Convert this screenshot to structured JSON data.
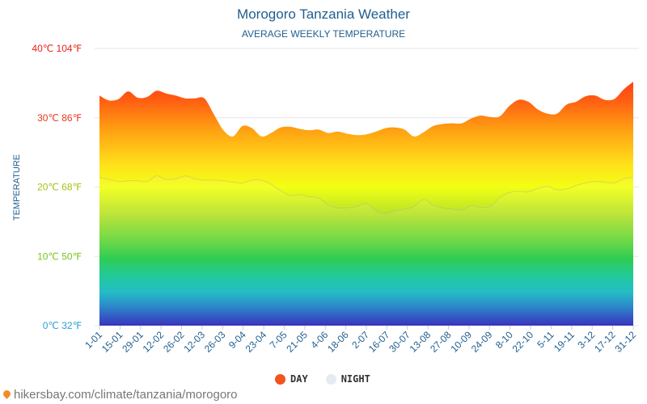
{
  "header": {
    "title": "Morogoro Tanzania Weather",
    "subtitle": "AVERAGE WEEKLY TEMPERATURE"
  },
  "legend": {
    "day_label": "DAY",
    "night_label": "NIGHT",
    "day_color": "#f2541d",
    "night_color": "#e6ebf2"
  },
  "footer": {
    "source": "hikersbay.com/climate/tanzania/morogoro"
  },
  "chart_data": {
    "type": "area",
    "ylabel": "TEMPERATURE",
    "ylim": [
      0,
      40
    ],
    "y_ticks": [
      {
        "value": 0,
        "label": "0℃ 32℉",
        "color": "#2a9fd6"
      },
      {
        "value": 10,
        "label": "10℃ 50℉",
        "color": "#7ac41e"
      },
      {
        "value": 20,
        "label": "20℃ 68℉",
        "color": "#a6c21a"
      },
      {
        "value": 30,
        "label": "30℃ 86℉",
        "color": "#e8391b"
      },
      {
        "value": 40,
        "label": "40℃ 104℉",
        "color": "#e8231b"
      }
    ],
    "x_labels": [
      "1-01",
      "15-01",
      "29-01",
      "12-02",
      "26-02",
      "12-03",
      "26-03",
      "9-04",
      "23-04",
      "7-05",
      "21-05",
      "4-06",
      "18-06",
      "2-07",
      "16-07",
      "30-07",
      "13-08",
      "27-08",
      "10-09",
      "24-09",
      "8-10",
      "22-10",
      "5-11",
      "19-11",
      "3-12",
      "17-12",
      "31-12"
    ],
    "grid": true,
    "legend_position": "bottom",
    "series": [
      {
        "name": "DAY",
        "values": [
          33.2,
          32.5,
          32.7,
          33.8,
          32.9,
          33.0,
          33.9,
          33.5,
          33.2,
          32.8,
          32.8,
          32.8,
          30.5,
          28.2,
          27.3,
          28.8,
          28.5,
          27.3,
          27.8,
          28.6,
          28.7,
          28.4,
          28.2,
          28.3,
          27.8,
          28.0,
          27.7,
          27.5,
          27.6,
          28.0,
          28.5,
          28.6,
          28.3,
          27.3,
          27.9,
          28.8,
          29.1,
          29.2,
          29.2,
          29.9,
          30.3,
          30.1,
          30.2,
          31.7,
          32.6,
          32.3,
          31.2,
          30.6,
          30.6,
          31.9,
          32.3,
          33.1,
          33.2,
          32.6,
          32.7,
          34.1,
          35.2
        ]
      },
      {
        "name": "NIGHT",
        "values": [
          21.4,
          21.1,
          20.8,
          20.9,
          20.9,
          20.8,
          21.6,
          21.1,
          21.2,
          21.6,
          21.2,
          21.0,
          21.0,
          20.9,
          20.7,
          20.6,
          21.0,
          21.0,
          20.4,
          19.5,
          18.8,
          18.9,
          18.6,
          18.4,
          17.4,
          17.0,
          17.0,
          17.2,
          17.6,
          16.6,
          16.2,
          16.6,
          16.8,
          17.2,
          18.2,
          17.4,
          17.0,
          16.8,
          16.7,
          17.3,
          17.1,
          17.2,
          18.5,
          19.2,
          19.4,
          19.3,
          19.8,
          20.1,
          19.6,
          19.7,
          20.2,
          20.6,
          20.8,
          20.7,
          20.6,
          21.2,
          21.4
        ]
      }
    ]
  }
}
